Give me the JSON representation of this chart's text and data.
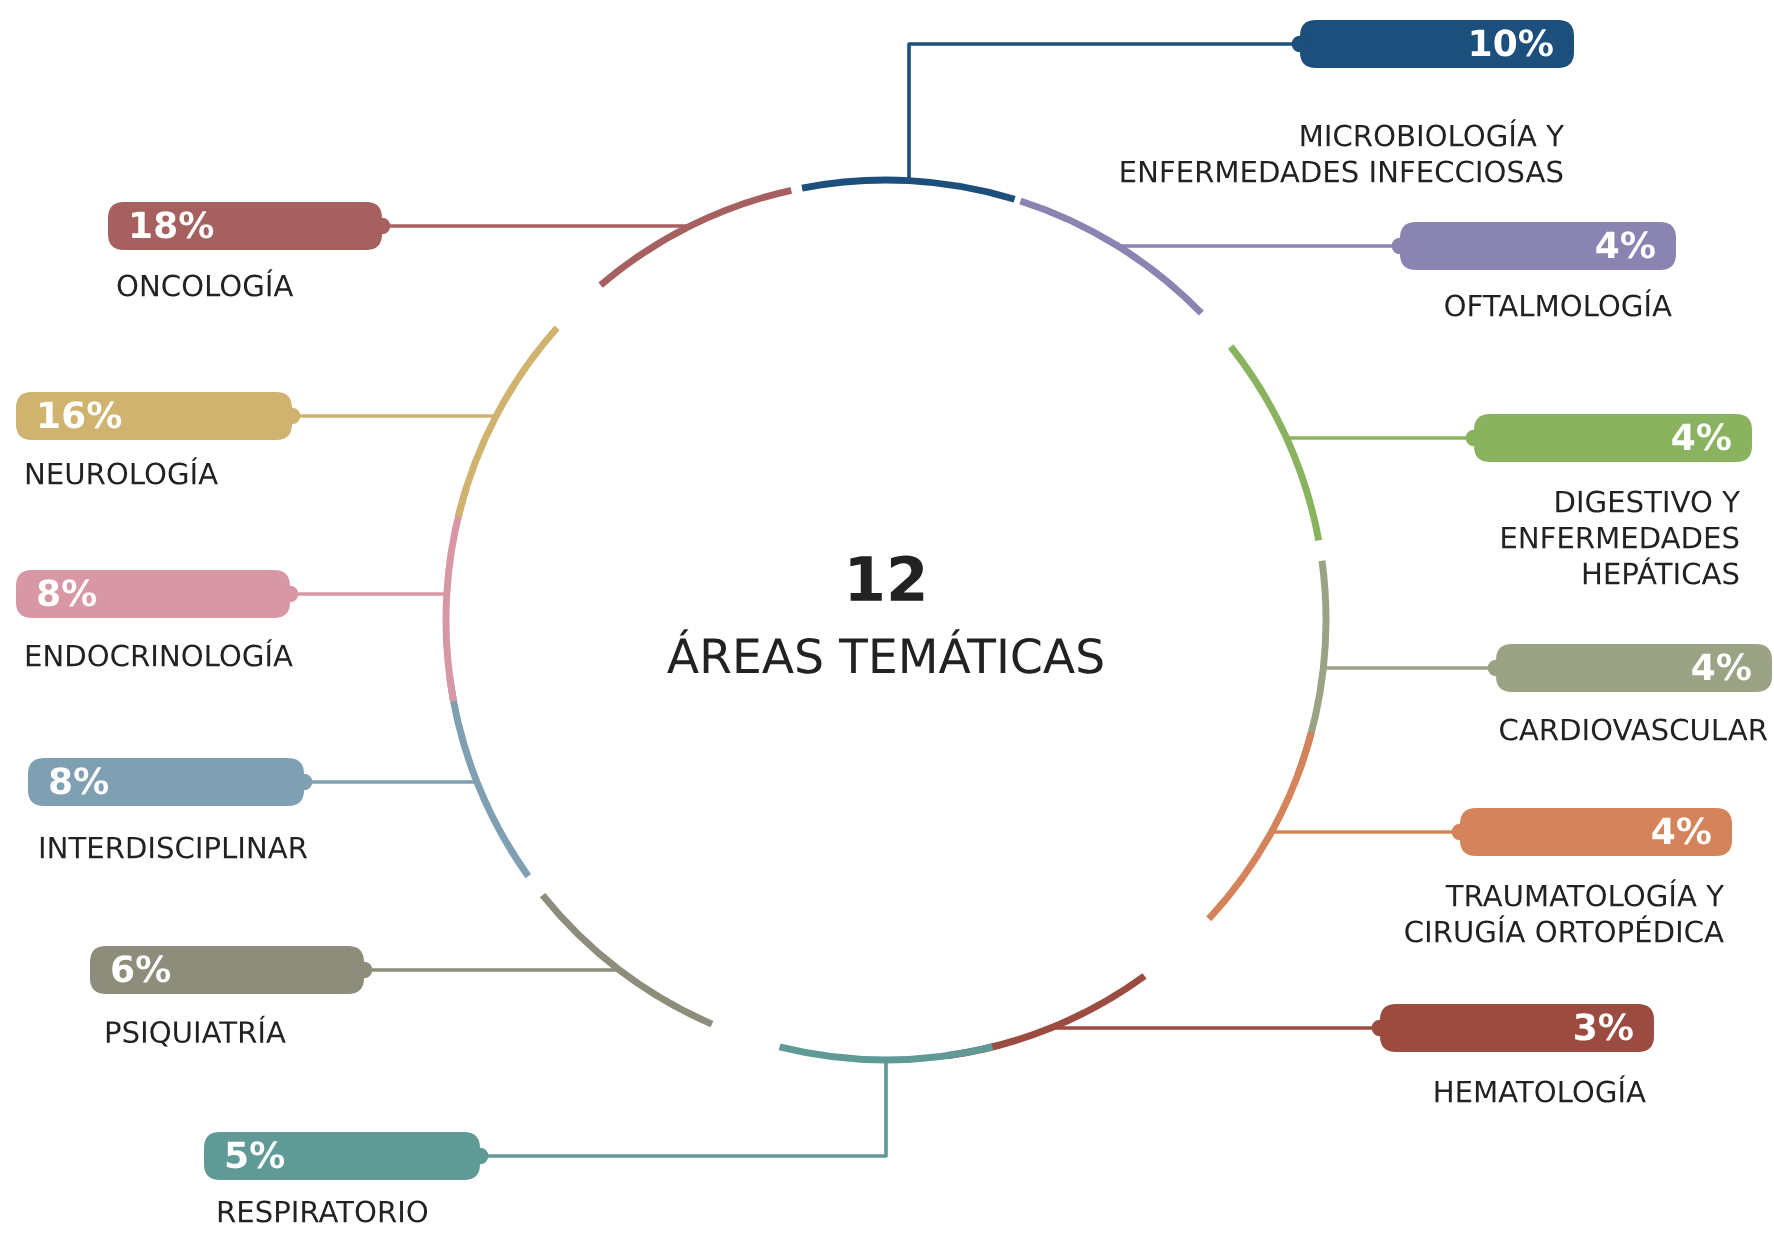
{
  "chart_data": {
    "type": "other",
    "title": "12",
    "subtitle": "ÁREAS TEMÁTICAS",
    "categories": [
      "MICROBIOLOGÍA Y\nENFERMEDADES INFECCIOSAS",
      "OFTALMOLOGÍA",
      "DIGESTIVO Y\nENFERMEDADES\nHEPÁTICAS",
      "CARDIOVASCULAR",
      "TRAUMATOLOGÍA Y\nCIRUGÍA ORTOPÉDICA",
      "HEMATOLOGÍA",
      "RESPIRATORIO",
      "PSIQUIATRÍA",
      "INTERDISCIPLINAR",
      "ENDOCRINOLOGÍA",
      "NEUROLOGÍA",
      "ONCOLOGÍA"
    ],
    "values": [
      10,
      4,
      4,
      4,
      4,
      3,
      5,
      6,
      8,
      8,
      16,
      18
    ],
    "value_labels": [
      "10%",
      "4%",
      "4%",
      "4%",
      "4%",
      "3%",
      "5%",
      "6%",
      "8%",
      "8%",
      "16%",
      "18%"
    ],
    "colors": [
      "#1d4f7c",
      "#8a84b2",
      "#8ab35f",
      "#9aa384",
      "#d4835a",
      "#9c4b40",
      "#5f9a97",
      "#8e8d7c",
      "#7f9fb2",
      "#d897a5",
      "#cfb36f",
      "#a6605f"
    ]
  }
}
